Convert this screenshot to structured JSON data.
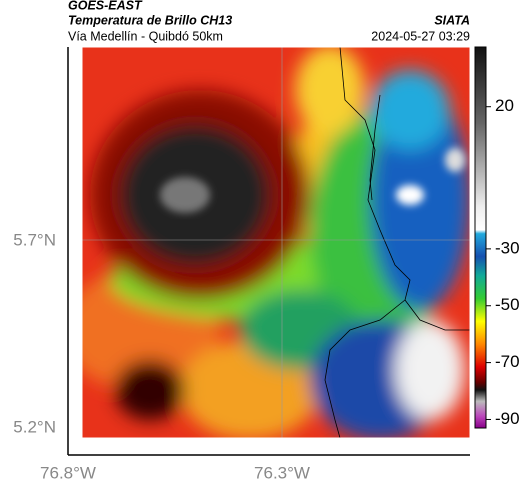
{
  "header": {
    "source": "GOES-EAST",
    "title": "Temperatura de Brillo CH13",
    "subtitle": "Vía Medellín - Quibdó 50km",
    "agency": "SIATA",
    "timestamp": "2024-05-27 03:29"
  },
  "map": {
    "lat_labels": [
      "5.7°N",
      "5.2°N"
    ],
    "lon_labels": [
      "76.8°W",
      "76.3°W"
    ]
  },
  "colorbar": {
    "lim": [
      -93,
      41
    ],
    "ticks": [
      20,
      -30,
      -50,
      -70,
      -90
    ]
  }
}
